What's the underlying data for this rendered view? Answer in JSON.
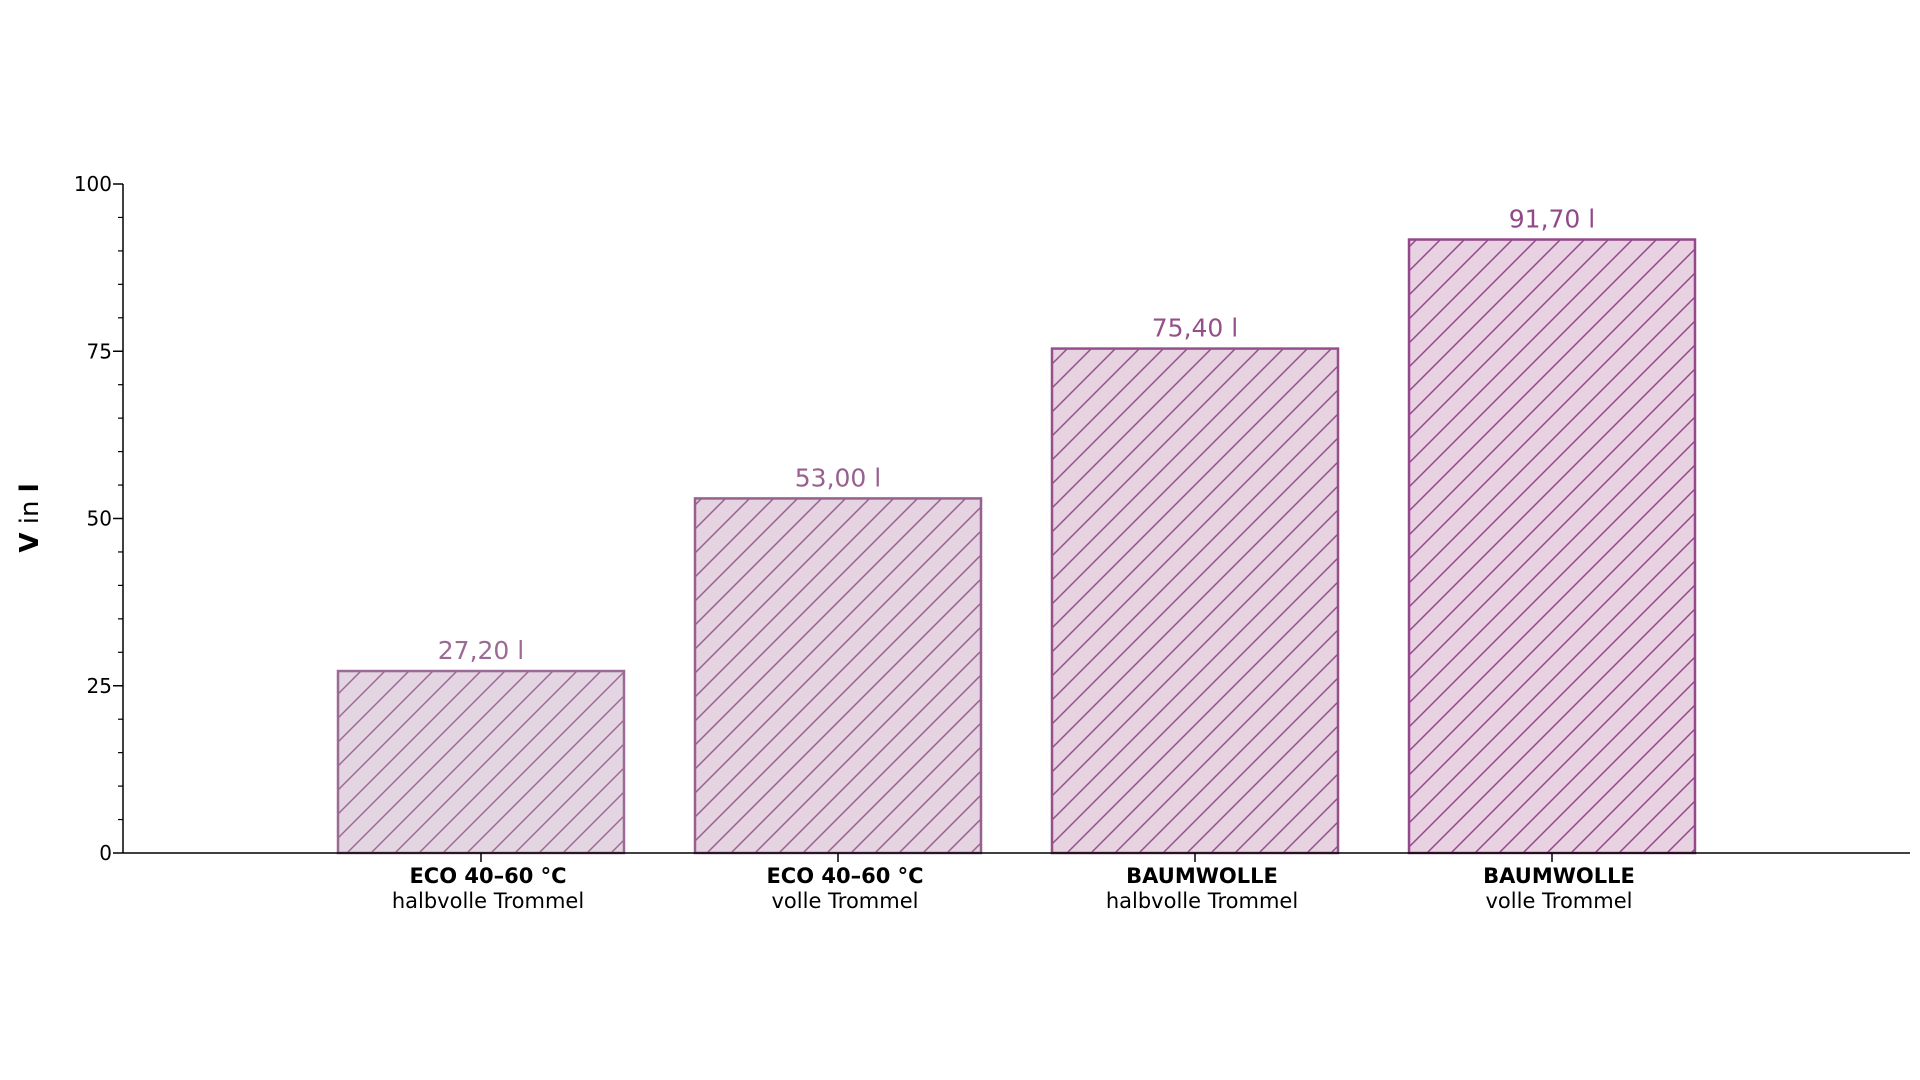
{
  "chart_data": {
    "type": "bar",
    "title": "",
    "xlabel": "",
    "ylabel_bold": "V",
    "ylabel_mid": " in ",
    "ylabel_unit": "l",
    "ylim": [
      0,
      100
    ],
    "yticks": [
      0,
      25,
      50,
      75,
      100
    ],
    "ytick_labels": [
      "0",
      "25",
      "50",
      "75",
      "100"
    ],
    "minor_tick_step": 5,
    "grid": false,
    "categories": [
      {
        "line1": "ECO 40–60 °C",
        "line2": "halbvolle Trommel"
      },
      {
        "line1": "ECO 40–60 °C",
        "line2": "volle Trommel"
      },
      {
        "line1": "BAUMWOLLE",
        "line2": "halbvolle Trommel"
      },
      {
        "line1": "BAUMWOLLE",
        "line2": "volle Trommel"
      }
    ],
    "values": [
      27.2,
      53.0,
      75.4,
      91.7
    ],
    "data_labels": [
      "27,20 l",
      "53,00 l",
      "75,40 l",
      "91,70 l"
    ],
    "colors": {
      "bar_fill": [
        "#e3d5e2",
        "#e5d3e1",
        "#e7d2e0",
        "#e8d1e0"
      ],
      "bar_edge": [
        "#9b6a95",
        "#98608f",
        "#954f8a",
        "#92488a"
      ],
      "label": [
        "#9b6a95",
        "#98608f",
        "#954f8a",
        "#92488a"
      ]
    }
  }
}
